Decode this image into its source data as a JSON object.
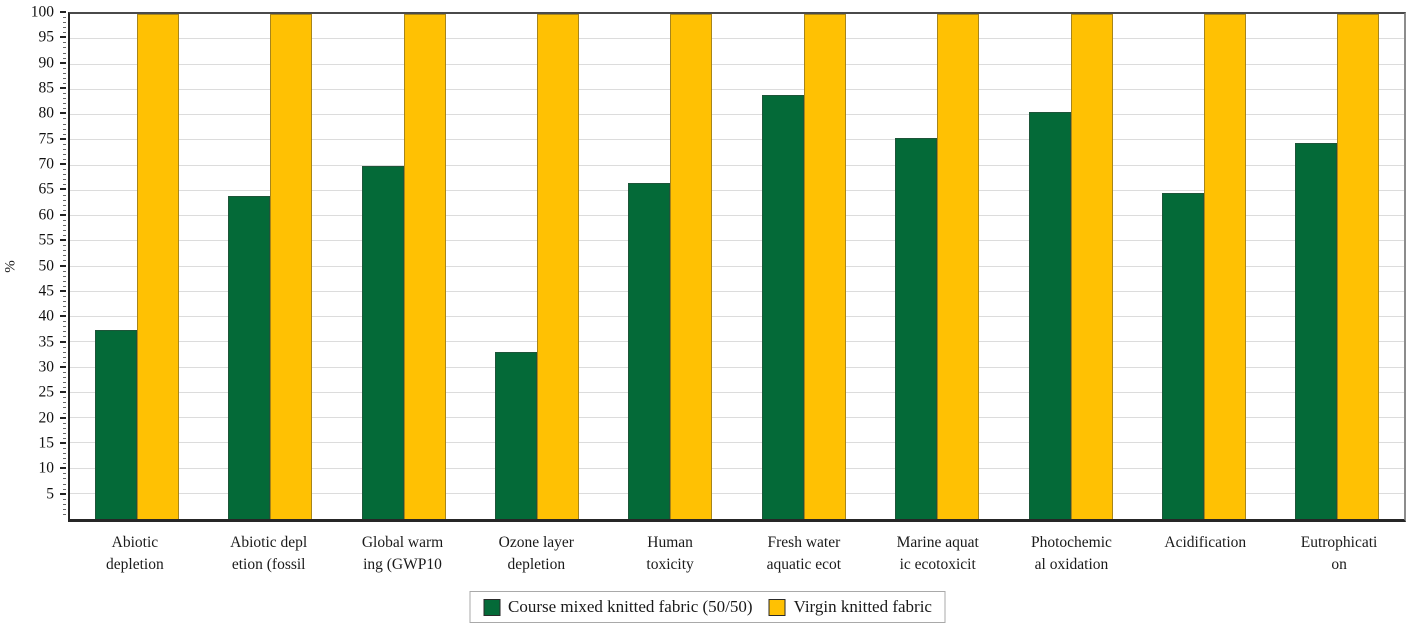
{
  "chart_data": {
    "type": "bar",
    "title": "",
    "ylabel": "%",
    "xlabel": "",
    "ylim": [
      0,
      100
    ],
    "y_tick_step": 5,
    "y_ticks": [
      5,
      10,
      15,
      20,
      25,
      30,
      35,
      40,
      45,
      50,
      55,
      60,
      65,
      70,
      75,
      80,
      85,
      90,
      95,
      100
    ],
    "grid": "horizontal",
    "grid_color": "#dcdcdc",
    "legend_position": "bottom-center",
    "categories": [
      "Abiotic\ndepletion",
      "Abiotic depl\netion (fossil",
      "Global warm\ning (GWP10",
      "Ozone layer\ndepletion",
      "Human\ntoxicity",
      "Fresh water\naquatic ecot",
      "Marine aquat\nic ecotoxicit",
      "Photochemic\nal oxidation",
      "Acidification",
      "Eutrophicati\non"
    ],
    "series": [
      {
        "name": "Course mixed knitted fabric (50/50)",
        "color": "#046A38",
        "values": [
          37.5,
          64,
          70,
          33,
          66.5,
          84,
          75.5,
          80.5,
          64.5,
          74.5
        ]
      },
      {
        "name": "Virgin knitted fabric",
        "color": "#FFC103",
        "values": [
          100,
          100,
          100,
          100,
          100,
          100,
          100,
          100,
          100,
          100
        ]
      }
    ]
  }
}
